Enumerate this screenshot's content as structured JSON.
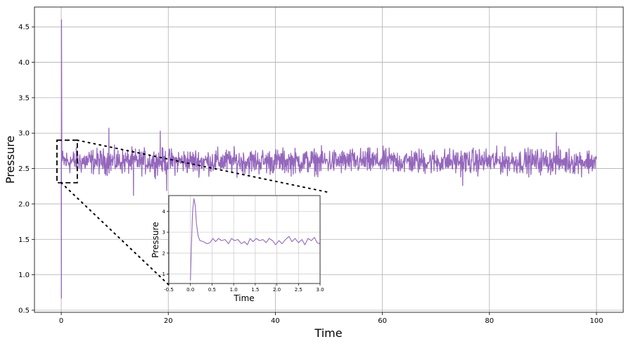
{
  "chart_data": [
    {
      "type": "line",
      "xlabel": "Time",
      "ylabel": "Pressure",
      "xlim": [
        -5,
        105
      ],
      "ylim": [
        0.47,
        4.78
      ],
      "xticks": [
        0,
        20,
        40,
        60,
        80,
        100
      ],
      "yticks": [
        0.5,
        1.0,
        1.5,
        2.0,
        2.5,
        3.0,
        3.5,
        4.0,
        4.5
      ],
      "ytick_labels": [
        "0.5",
        "1.0",
        "1.5",
        "2.0",
        "2.5",
        "3.0",
        "3.5",
        "4.0",
        "4.5"
      ],
      "grid": true,
      "series": [
        {
          "color": "#9467bd",
          "x_range": [
            0,
            100
          ],
          "mean": 2.6,
          "spike": {
            "x": 0.05,
            "max": 4.6,
            "min": 0.67
          },
          "noise_band": [
            2.3,
            2.9
          ],
          "outliers": [
            {
              "x": 8.9,
              "y": 3.07
            },
            {
              "x": 18.5,
              "y": 3.03
            },
            {
              "x": 13.5,
              "y": 2.12
            },
            {
              "x": 19.7,
              "y": 2.19
            },
            {
              "x": 92.5,
              "y": 3.01
            },
            {
              "x": 75.0,
              "y": 2.26
            }
          ]
        }
      ],
      "zoom_box": {
        "x": [
          -0.8,
          3.0
        ],
        "y": [
          2.3,
          2.9
        ]
      }
    },
    {
      "type": "line",
      "xlabel": "Time",
      "ylabel": "Pressure",
      "xlim": [
        -0.5,
        3.0
      ],
      "ylim": [
        0.55,
        4.75
      ],
      "xticks": [
        -0.5,
        0.0,
        0.5,
        1.0,
        1.5,
        2.0,
        2.5,
        3.0
      ],
      "xtick_labels": [
        "-0.5",
        "0.0",
        "0.5",
        "1.0",
        "1.5",
        "2.0",
        "2.5",
        "3.0"
      ],
      "yticks": [
        1,
        2,
        3,
        4
      ],
      "ytick_labels": [
        "1",
        "2",
        "3",
        "4"
      ],
      "grid": true,
      "series": [
        {
          "color": "#9467bd",
          "points": [
            [
              0.0,
              0.7
            ],
            [
              0.02,
              2.2
            ],
            [
              0.05,
              4.0
            ],
            [
              0.08,
              4.6
            ],
            [
              0.11,
              4.3
            ],
            [
              0.14,
              3.4
            ],
            [
              0.18,
              2.8
            ],
            [
              0.22,
              2.6
            ],
            [
              0.3,
              2.55
            ],
            [
              0.38,
              2.45
            ],
            [
              0.45,
              2.5
            ],
            [
              0.52,
              2.7
            ],
            [
              0.58,
              2.55
            ],
            [
              0.65,
              2.7
            ],
            [
              0.72,
              2.6
            ],
            [
              0.8,
              2.65
            ],
            [
              0.88,
              2.45
            ],
            [
              0.95,
              2.7
            ],
            [
              1.02,
              2.6
            ],
            [
              1.1,
              2.65
            ],
            [
              1.18,
              2.45
            ],
            [
              1.25,
              2.55
            ],
            [
              1.32,
              2.4
            ],
            [
              1.38,
              2.7
            ],
            [
              1.45,
              2.55
            ],
            [
              1.52,
              2.7
            ],
            [
              1.6,
              2.6
            ],
            [
              1.68,
              2.65
            ],
            [
              1.75,
              2.5
            ],
            [
              1.82,
              2.7
            ],
            [
              1.9,
              2.6
            ],
            [
              1.97,
              2.4
            ],
            [
              2.05,
              2.6
            ],
            [
              2.12,
              2.45
            ],
            [
              2.2,
              2.65
            ],
            [
              2.28,
              2.8
            ],
            [
              2.35,
              2.55
            ],
            [
              2.42,
              2.7
            ],
            [
              2.5,
              2.5
            ],
            [
              2.58,
              2.65
            ],
            [
              2.65,
              2.4
            ],
            [
              2.72,
              2.7
            ],
            [
              2.8,
              2.6
            ],
            [
              2.87,
              2.75
            ],
            [
              2.93,
              2.5
            ],
            [
              3.0,
              2.45
            ]
          ]
        }
      ]
    }
  ]
}
